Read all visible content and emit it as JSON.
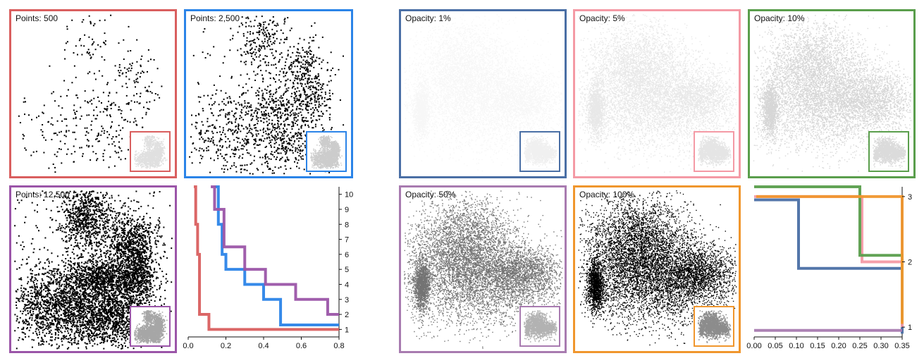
{
  "colors": {
    "red": "#d95f5f",
    "blue": "#2b84e8",
    "purple": "#9b55a8",
    "steel": "#4a6fa5",
    "pink": "#f49aa5",
    "green": "#5a9e4c",
    "mauve": "#a87bb0",
    "orange": "#f0962d"
  },
  "panels": [
    {
      "label": "Points: 500",
      "color": "#d95f5f"
    },
    {
      "label": "Points: 2,500",
      "color": "#2b84e8"
    },
    {
      "label": "Points: 12,500",
      "color": "#9b55a8"
    },
    {
      "label": "Opacity: 1%",
      "color": "#4a6fa5"
    },
    {
      "label": "Opacity: 5%",
      "color": "#f49aa5"
    },
    {
      "label": "Opacity: 10%",
      "color": "#5a9e4c"
    },
    {
      "label": "Opacity: 50%",
      "color": "#a87bb0"
    },
    {
      "label": "Opacity: 100%",
      "color": "#f0962d"
    }
  ],
  "chart_data": [
    {
      "type": "line",
      "step": true,
      "xlim": [
        0,
        0.8
      ],
      "ylim": [
        0.5,
        10.5
      ],
      "x_ticks": [
        "0.0",
        "0.2",
        "0.4",
        "0.6",
        "0.8"
      ],
      "y_ticks": [
        "1",
        "2",
        "3",
        "4",
        "5",
        "6",
        "7",
        "8",
        "9",
        "10"
      ],
      "series": [
        {
          "color": "#d95f5f",
          "x": [
            0.03,
            0.04,
            0.05,
            0.06,
            0.11,
            0.8
          ],
          "y": [
            10.5,
            8,
            6,
            2,
            1,
            1
          ]
        },
        {
          "color": "#2b84e8",
          "x": [
            0.14,
            0.16,
            0.18,
            0.2,
            0.3,
            0.4,
            0.49,
            0.8
          ],
          "y": [
            10.5,
            8,
            6,
            5,
            4,
            3,
            1.3,
            1.3
          ]
        },
        {
          "color": "#9b55a8",
          "x": [
            0.12,
            0.14,
            0.19,
            0.3,
            0.41,
            0.57,
            0.74,
            0.8
          ],
          "y": [
            10.5,
            9,
            6.5,
            5,
            4,
            3,
            2,
            2
          ]
        }
      ]
    },
    {
      "type": "line",
      "step": true,
      "xlim": [
        0,
        0.35
      ],
      "ylim": [
        0.85,
        3.15
      ],
      "x_ticks": [
        "0.00",
        "0.05",
        "0.10",
        "0.15",
        "0.20",
        "0.25",
        "0.30",
        "0.35"
      ],
      "y_ticks": [
        "1",
        "2",
        "3"
      ],
      "series": [
        {
          "color": "#4a6fa5",
          "x": [
            0.0,
            0.085,
            0.105,
            0.35
          ],
          "y": [
            2.95,
            2.95,
            1.9,
            0.9
          ]
        },
        {
          "color": "#f49aa5",
          "x": [
            0.0,
            0.205,
            0.255,
            0.35
          ],
          "y": [
            3.0,
            3.0,
            2.0,
            1.0
          ]
        },
        {
          "color": "#5a9e4c",
          "x": [
            0.0,
            0.205,
            0.25,
            0.35
          ],
          "y": [
            3.15,
            3.15,
            2.1,
            1.08
          ]
        },
        {
          "color": "#a87bb0",
          "x": [
            0.0,
            0.35
          ],
          "y": [
            0.95,
            0.95
          ]
        },
        {
          "color": "#f0962d",
          "x": [
            0.005,
            0.35
          ],
          "y": [
            3.0,
            1.05
          ]
        }
      ]
    }
  ]
}
